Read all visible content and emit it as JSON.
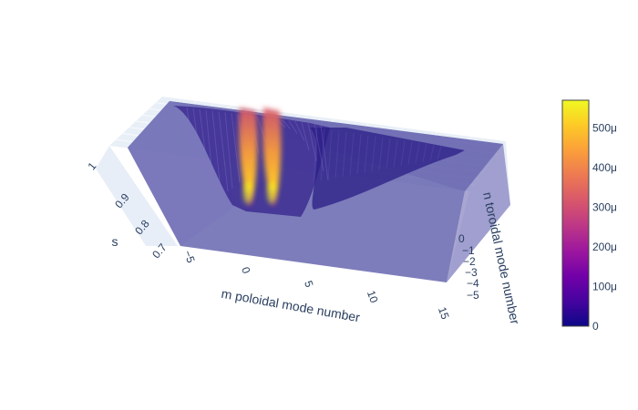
{
  "chart_data": {
    "type": "surface",
    "x_axis": {
      "title": "m poloidal mode number",
      "ticks": [
        "−5",
        "0",
        "5",
        "10",
        "15"
      ],
      "range": [
        -7,
        15
      ]
    },
    "y_axis": {
      "title": "n toroidal mode number",
      "ticks": [
        "0",
        "−1",
        "−2",
        "−3",
        "−4",
        "−5"
      ],
      "range": [
        -5,
        0
      ]
    },
    "z_axis": {
      "title": "s",
      "ticks": [
        "0.7",
        "0.8",
        "0.9",
        "1"
      ],
      "range": [
        0.7,
        1.0
      ]
    },
    "colorbar": {
      "ticks": [
        "0",
        "100μ",
        "200μ",
        "300μ",
        "400μ",
        "500μ"
      ],
      "range": [
        0,
        0.00055
      ],
      "colorscale": [
        "#0d0887",
        "#46039f",
        "#7201a8",
        "#9c179e",
        "#bd3786",
        "#d8576b",
        "#ed7953",
        "#fb9f3a",
        "#fdca26",
        "#f0f921"
      ]
    },
    "peaks_m": [
      0,
      2
    ],
    "peak_value": 0.00055,
    "grid": true,
    "scene": "3d"
  }
}
